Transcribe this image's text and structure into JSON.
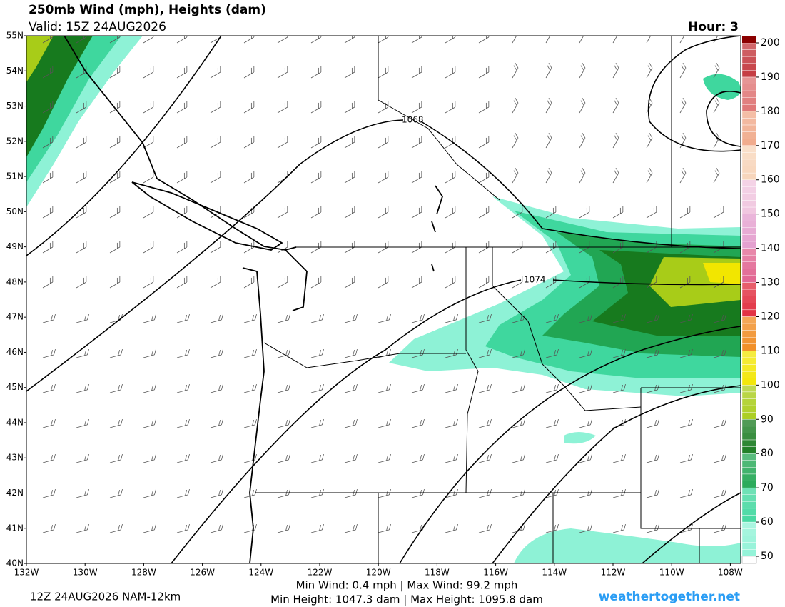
{
  "header": {
    "title": "250mb Wind (mph), Heights (dam)",
    "valid": "Valid: 15Z 24AUG2026",
    "hour": "Hour: 3"
  },
  "map": {
    "lat_ticks": [
      {
        "value": 55,
        "label": "55N"
      },
      {
        "value": 54,
        "label": "54N"
      },
      {
        "value": 53,
        "label": "53N"
      },
      {
        "value": 52,
        "label": "52N"
      },
      {
        "value": 51,
        "label": "51N"
      },
      {
        "value": 50,
        "label": "50N"
      },
      {
        "value": 49,
        "label": "49N"
      },
      {
        "value": 48,
        "label": "48N"
      },
      {
        "value": 47,
        "label": "47N"
      },
      {
        "value": 46,
        "label": "46N"
      },
      {
        "value": 45,
        "label": "45N"
      },
      {
        "value": 44,
        "label": "44N"
      },
      {
        "value": 43,
        "label": "43N"
      },
      {
        "value": 42,
        "label": "42N"
      },
      {
        "value": 41,
        "label": "41N"
      },
      {
        "value": 40,
        "label": "40N"
      }
    ],
    "lon_ticks": [
      {
        "value": -132,
        "label": "132W"
      },
      {
        "value": -130,
        "label": "130W"
      },
      {
        "value": -128,
        "label": "128W"
      },
      {
        "value": -126,
        "label": "126W"
      },
      {
        "value": -124,
        "label": "124W"
      },
      {
        "value": -122,
        "label": "122W"
      },
      {
        "value": -120,
        "label": "120W"
      },
      {
        "value": -118,
        "label": "118W"
      },
      {
        "value": -116,
        "label": "116W"
      },
      {
        "value": -114,
        "label": "114W"
      },
      {
        "value": -112,
        "label": "112W"
      },
      {
        "value": -110,
        "label": "110W"
      },
      {
        "value": -108,
        "label": "108W"
      }
    ],
    "contour_labels": [
      "1068",
      "1074"
    ]
  },
  "colorbar": {
    "ticks": [
      50,
      60,
      70,
      80,
      90,
      100,
      110,
      120,
      130,
      140,
      150,
      160,
      170,
      180,
      190,
      200
    ],
    "colors": [
      "#8ef2d6",
      "#3fd79e",
      "#21a653",
      "#177a1e",
      "#a8cc18",
      "#f2e600",
      "#f08a1e",
      "#e0283a",
      "#e0608e",
      "#e39ccd",
      "#f0c4de",
      "#f7d4b8",
      "#f0a888",
      "#de7272",
      "#c2343a"
    ]
  },
  "footer": {
    "run": "12Z 24AUG2026 NAM-12km",
    "wind": "Min Wind:  0.4 mph | Max Wind:  99.2 mph",
    "height": "Min Height: 1047.3 dam | Max Height: 1095.8 dam",
    "site": "weathertogether.net"
  }
}
